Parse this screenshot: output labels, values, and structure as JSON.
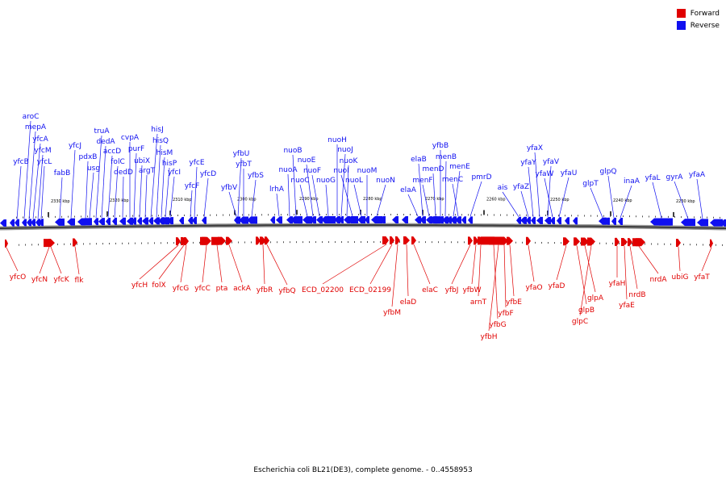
{
  "legend": {
    "forward_label": "Forward",
    "reverse_label": "Reverse",
    "forward_color": "#e00000",
    "reverse_color": "#1010f0"
  },
  "caption": "Escherichia coli BL21(DE3), complete genome. - 0..4558953",
  "ticks": [
    "2330 kbp",
    "2320 kbp",
    "2310 kbp",
    "2300 kbp",
    "2290 kbp",
    "2280 kbp",
    "2270 kbp",
    "2260 kbp",
    "2250 kbp",
    "2240 kbp",
    "2230 kbp"
  ],
  "reverse_genes": [
    "aroC",
    "mepA",
    "yfcA",
    "yfcM",
    "yfcL",
    "yfcB",
    "yfcJ",
    "fabB",
    "pdxB",
    "usg",
    "truA",
    "dedA",
    "accD",
    "folC",
    "dedD",
    "cvpA",
    "purF",
    "ubiX",
    "argT",
    "hisJ",
    "hisQ",
    "hisM",
    "hisP",
    "yfcI",
    "yfcE",
    "yfcD",
    "yfcF",
    "yfbU",
    "yfbT",
    "yfbS",
    "yfbV",
    "lrhA",
    "nuoA",
    "nuoB",
    "nuoC",
    "nuoE",
    "nuoF",
    "nuoG",
    "nuoH",
    "nuoJ",
    "nuoK",
    "nuoI",
    "nuoL",
    "nuoM",
    "nuoN",
    "elaA",
    "elaB",
    "menF",
    "menD",
    "yfbB",
    "menB",
    "menE",
    "menC",
    "pmrD",
    "ais",
    "yfaZ",
    "yfaY",
    "yfaX",
    "yfaV",
    "yfaW",
    "yfaU",
    "glpT",
    "glpQ",
    "inaA",
    "yfaL",
    "gyrA",
    "yfaA"
  ],
  "forward_genes": [
    "yfcO",
    "yfcN",
    "yfcK",
    "flk",
    "yfcH",
    "folX",
    "yfcG",
    "yfcC",
    "pta",
    "ackA",
    "yfbR",
    "yfbQ",
    "ECD_02200",
    "ECD_02199",
    "yfbM",
    "elaD",
    "elaC",
    "yfbJ",
    "yfbW",
    "arnT",
    "yfbG",
    "yfbH",
    "yfbF",
    "yfbE",
    "yfaO",
    "yfaD",
    "glpB",
    "glpA",
    "glpC",
    "yfaH",
    "yfaE",
    "nrdB",
    "nrdA",
    "ubiG",
    "yfaT"
  ]
}
